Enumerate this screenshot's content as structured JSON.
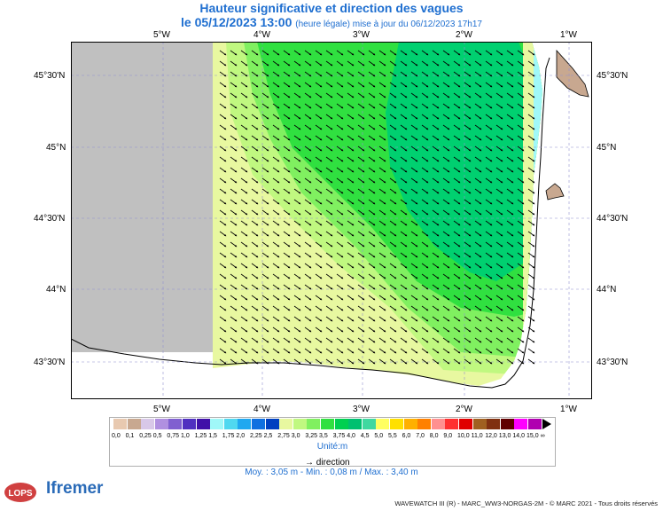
{
  "header": {
    "title": "Hauteur significative et direction des vagues",
    "date_line": "le 05/12/2023 13:00",
    "update_note": "(heure légale) mise à jour du 06/12/2023 17h17"
  },
  "map": {
    "lon_ticks": [
      "5°W",
      "4°W",
      "3°W",
      "2°W",
      "1°W"
    ],
    "lat_ticks": [
      "45°30'N",
      "45°N",
      "44°30'N",
      "44°N",
      "43°30'N"
    ]
  },
  "legend": {
    "labels": [
      "0,0",
      "0,1",
      "0,25",
      "0,5",
      "0,75",
      "1,0",
      "1,25",
      "1,5",
      "1,75",
      "2,0",
      "2,25",
      "2,5",
      "2,75",
      "3,0",
      "3,25",
      "3,5",
      "3,75",
      "4,0",
      "4,5",
      "5,0",
      "5,5",
      "6,0",
      "7,0",
      "8,0",
      "9,0",
      "10,0",
      "11,0",
      "12,0",
      "13,0",
      "14,0",
      "15,0",
      "∞"
    ],
    "colors": [
      "#e8c9b0",
      "#c8a890",
      "#d8c8e8",
      "#b090e0",
      "#8060d0",
      "#5030c0",
      "#4010a8",
      "#a0f8f8",
      "#50d8f0",
      "#20a8f0",
      "#1070e0",
      "#0040c0",
      "#e8f8a0",
      "#c0f880",
      "#80f060",
      "#30e040",
      "#00d050",
      "#00c070",
      "#40d8a0",
      "#ffff60",
      "#ffe000",
      "#ffb000",
      "#ff8000",
      "#ff9090",
      "#ff3030",
      "#e00000",
      "#a06020",
      "#803010",
      "#600000",
      "#ff00ff",
      "#b000b0"
    ],
    "unit_label": "Unité:m",
    "direction_label": "direction"
  },
  "stats": {
    "text": "Moy. : 3,05 m   -   Min. : 0,08 m / Max. : 3,40 m"
  },
  "logos": {
    "lops": "LOPS",
    "ifremer": "Ifremer"
  },
  "footer": "WAVEWATCH III (R) - MARC_WW3-NORGAS-2M - © MARC 2021 - Tous droits réservés"
}
